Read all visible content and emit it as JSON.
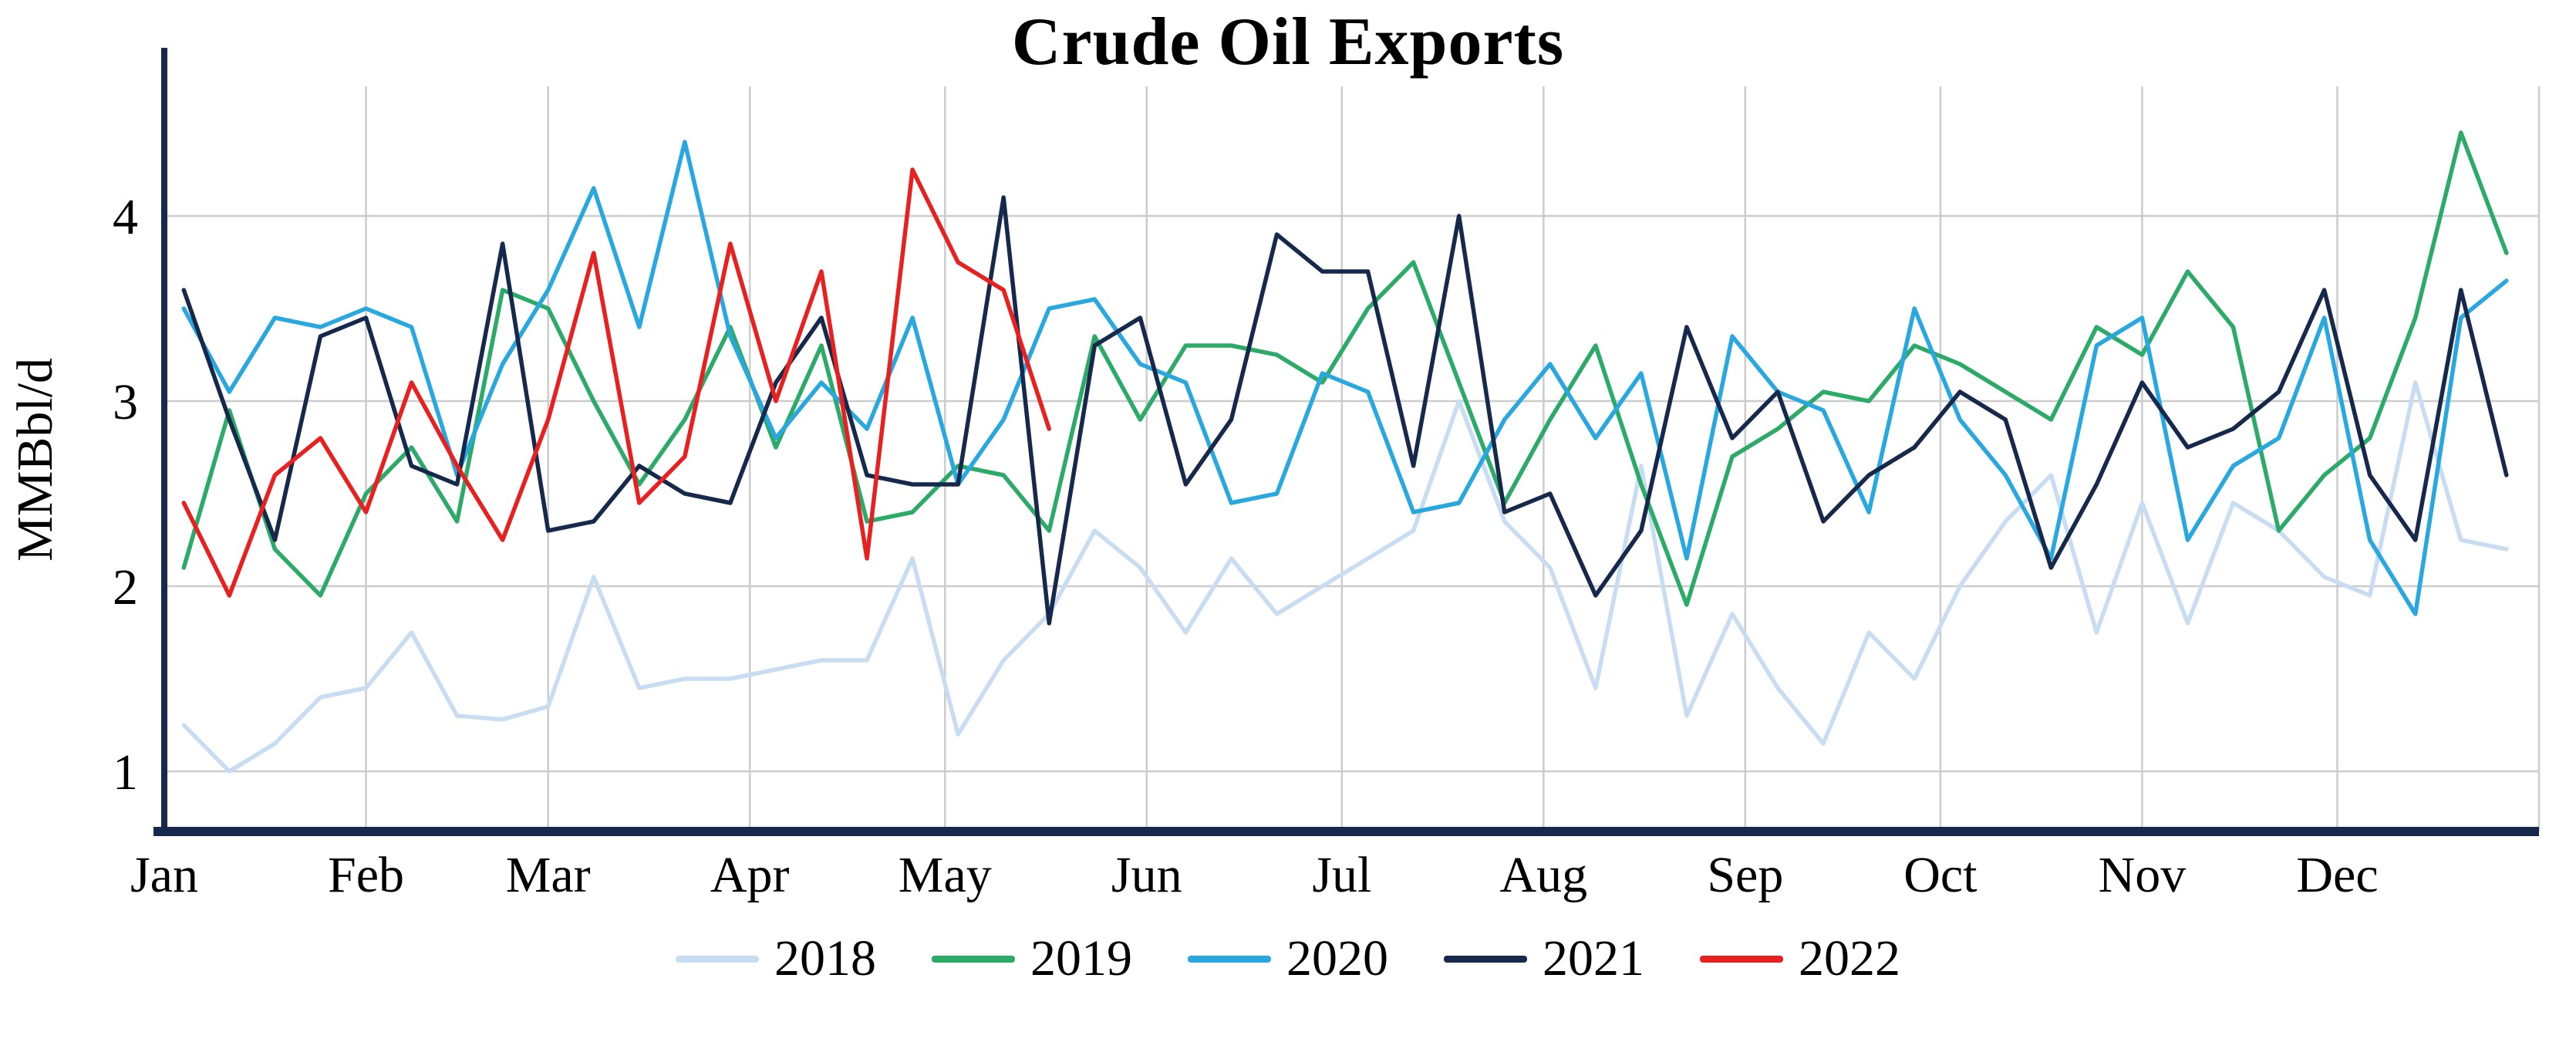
{
  "chart_data": {
    "type": "line",
    "title": "Crude Oil Exports",
    "ylabel": "MMBbl/d",
    "xlabel": "",
    "ylim": [
      0.7,
      4.7
    ],
    "yticks": [
      1,
      2,
      3,
      4
    ],
    "grid": true,
    "grid_color": "#cccccc",
    "axis_color": "#16294d",
    "legend_position": "bottom",
    "x_unit": "week-of-year",
    "month_labels": [
      "Jan",
      "Feb",
      "Mar",
      "Apr",
      "May",
      "Jun",
      "Jul",
      "Aug",
      "Sep",
      "Oct",
      "Nov",
      "Dec"
    ],
    "series": [
      {
        "name": "2018",
        "color": "#c9ddf2",
        "values": [
          1.25,
          1.0,
          1.15,
          1.4,
          1.45,
          1.75,
          1.3,
          1.28,
          1.35,
          2.05,
          1.45,
          1.5,
          1.5,
          1.55,
          1.6,
          1.6,
          2.15,
          1.2,
          1.6,
          1.85,
          2.3,
          2.1,
          1.75,
          2.15,
          1.85,
          2.0,
          2.15,
          2.3,
          3.0,
          2.35,
          2.1,
          1.45,
          2.65,
          1.3,
          1.85,
          1.45,
          1.15,
          1.75,
          1.5,
          2.0,
          2.35,
          2.6,
          1.75,
          2.45,
          1.8,
          2.45,
          2.3,
          2.05,
          1.95,
          3.1,
          2.25,
          2.2
        ]
      },
      {
        "name": "2019",
        "color": "#2bab67",
        "values": [
          2.1,
          2.95,
          2.2,
          1.95,
          2.5,
          2.75,
          2.35,
          3.6,
          3.5,
          3.0,
          2.55,
          2.9,
          3.4,
          2.75,
          3.3,
          2.35,
          2.4,
          2.65,
          2.6,
          2.3,
          3.35,
          2.9,
          3.3,
          3.3,
          3.25,
          3.1,
          3.5,
          3.75,
          3.1,
          2.45,
          2.9,
          3.3,
          2.55,
          1.9,
          2.7,
          2.85,
          3.05,
          3.0,
          3.3,
          3.2,
          3.05,
          2.9,
          3.4,
          3.25,
          3.7,
          3.4,
          2.3,
          2.6,
          2.8,
          3.45,
          4.45,
          3.8
        ]
      },
      {
        "name": "2020",
        "color": "#29a8e0",
        "values": [
          3.5,
          3.05,
          3.45,
          3.4,
          3.5,
          3.4,
          2.6,
          3.2,
          3.6,
          4.15,
          3.4,
          4.4,
          3.35,
          2.8,
          3.1,
          2.85,
          3.45,
          2.55,
          2.9,
          3.5,
          3.55,
          3.2,
          3.1,
          2.45,
          2.5,
          3.15,
          3.05,
          2.4,
          2.45,
          2.9,
          3.2,
          2.8,
          3.15,
          2.15,
          3.35,
          3.05,
          2.95,
          2.4,
          3.5,
          2.9,
          2.6,
          2.15,
          3.3,
          3.45,
          2.25,
          2.65,
          2.8,
          3.45,
          2.25,
          1.85,
          3.45,
          3.65
        ]
      },
      {
        "name": "2021",
        "color": "#16294d",
        "values": [
          3.6,
          2.9,
          2.25,
          3.35,
          3.45,
          2.65,
          2.55,
          3.85,
          2.3,
          2.35,
          2.65,
          2.5,
          2.45,
          3.1,
          3.45,
          2.6,
          2.55,
          2.55,
          4.1,
          1.8,
          3.3,
          3.45,
          2.55,
          2.9,
          3.9,
          3.7,
          3.7,
          2.65,
          4.0,
          2.4,
          2.5,
          1.95,
          2.3,
          3.4,
          2.8,
          3.05,
          2.35,
          2.6,
          2.75,
          3.05,
          2.9,
          2.1,
          2.55,
          3.1,
          2.75,
          2.85,
          3.05,
          3.6,
          2.6,
          2.25,
          3.6,
          2.6
        ]
      },
      {
        "name": "2022",
        "color": "#e82020",
        "values": [
          2.45,
          1.95,
          2.6,
          2.8,
          2.4,
          3.1,
          2.65,
          2.25,
          2.9,
          3.8,
          2.45,
          2.7,
          3.85,
          3.0,
          3.7,
          2.15,
          4.25,
          3.75,
          3.6,
          2.85
        ]
      }
    ]
  }
}
